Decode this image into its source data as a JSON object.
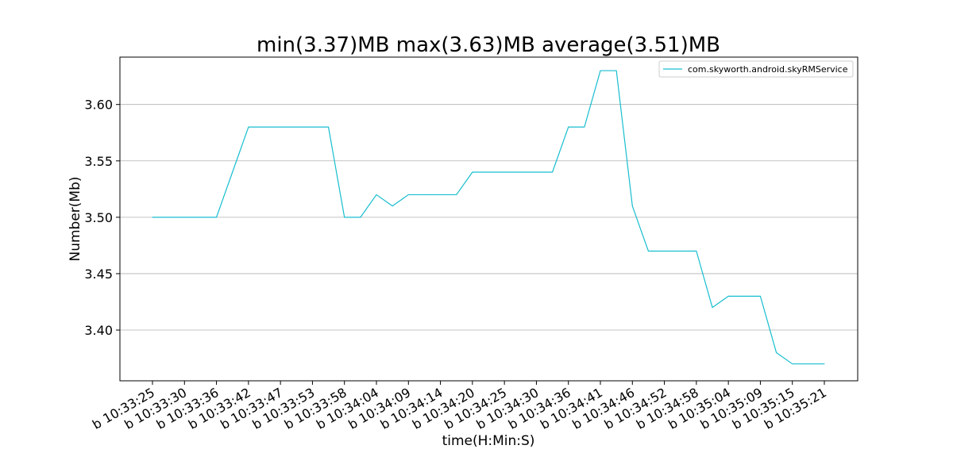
{
  "chart_data": {
    "type": "line",
    "title": "min(3.37)MB max(3.63)MB average(3.51)MB",
    "xlabel": "time(H:Min:S)",
    "ylabel": "Number(Mb)",
    "ylim": [
      3.355,
      3.642
    ],
    "y_ticks": [
      "3.40",
      "3.45",
      "3.50",
      "3.55",
      "3.60"
    ],
    "y_tick_values": [
      3.4,
      3.45,
      3.5,
      3.55,
      3.6
    ],
    "x_tick_labels": [
      "b 10:33:25",
      "b 10:33:30",
      "b 10:33:36",
      "b 10:33:42",
      "b 10:33:47",
      "b 10:33:53",
      "b 10:33:58",
      "b 10:34:04",
      "b 10:34:09",
      "b 10:34:14",
      "b 10:34:20",
      "b 10:34:25",
      "b 10:34:30",
      "b 10:34:36",
      "b 10:34:41",
      "b 10:34:46",
      "b 10:34:52",
      "b 10:34:58",
      "b 10:35:04",
      "b 10:35:09",
      "b 10:35:15",
      "b 10:35:21"
    ],
    "grid": "horizontal",
    "legend_position": "top-right",
    "series": [
      {
        "name": "com.skyworth.android.skyRMService",
        "color": "#17becf",
        "values": [
          3.5,
          3.5,
          3.5,
          3.5,
          3.5,
          3.54,
          3.58,
          3.58,
          3.58,
          3.58,
          3.58,
          3.58,
          3.5,
          3.5,
          3.52,
          3.51,
          3.52,
          3.52,
          3.52,
          3.52,
          3.54,
          3.54,
          3.54,
          3.54,
          3.54,
          3.54,
          3.58,
          3.58,
          3.63,
          3.63,
          3.51,
          3.47,
          3.47,
          3.47,
          3.47,
          3.42,
          3.43,
          3.43,
          3.43,
          3.38,
          3.37,
          3.37,
          3.37
        ]
      }
    ]
  }
}
